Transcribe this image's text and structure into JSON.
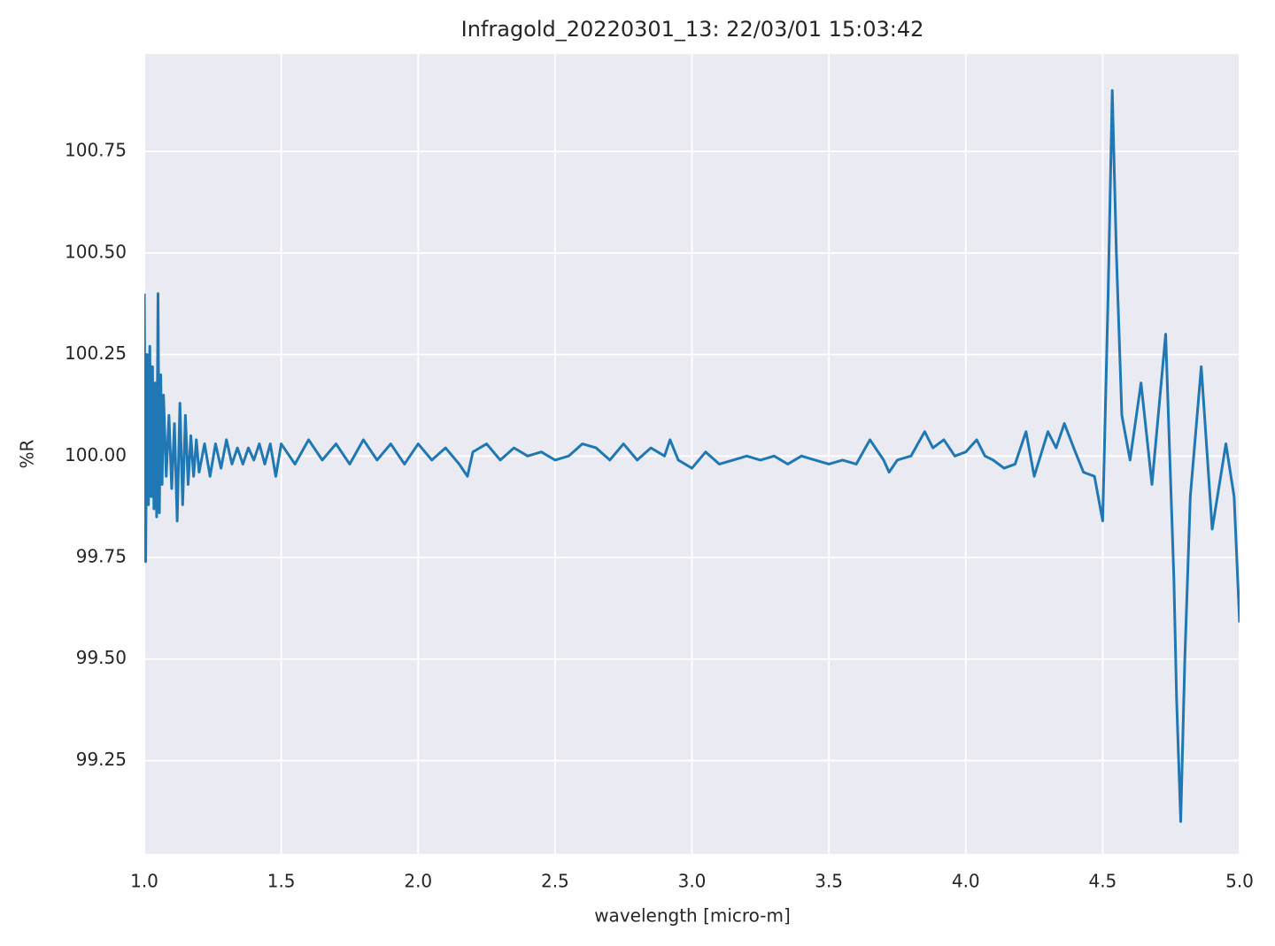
{
  "chart_data": {
    "type": "line",
    "title": "Infragold_20220301_13:  22/03/01 15:03:42",
    "xlabel": "wavelength [micro-m]",
    "ylabel": "%R",
    "color": "#1f77b4",
    "grid": true,
    "x": [
      1.0,
      1.005,
      1.01,
      1.015,
      1.02,
      1.025,
      1.03,
      1.035,
      1.04,
      1.045,
      1.05,
      1.055,
      1.06,
      1.065,
      1.07,
      1.08,
      1.09,
      1.1,
      1.11,
      1.12,
      1.13,
      1.14,
      1.15,
      1.16,
      1.17,
      1.18,
      1.19,
      1.2,
      1.22,
      1.24,
      1.26,
      1.28,
      1.3,
      1.32,
      1.34,
      1.36,
      1.38,
      1.4,
      1.42,
      1.44,
      1.46,
      1.48,
      1.5,
      1.55,
      1.6,
      1.65,
      1.7,
      1.75,
      1.8,
      1.85,
      1.9,
      1.95,
      2.0,
      2.05,
      2.1,
      2.15,
      2.18,
      2.2,
      2.25,
      2.3,
      2.35,
      2.4,
      2.45,
      2.5,
      2.55,
      2.6,
      2.65,
      2.7,
      2.75,
      2.8,
      2.85,
      2.9,
      2.92,
      2.95,
      3.0,
      3.05,
      3.1,
      3.15,
      3.2,
      3.25,
      3.3,
      3.35,
      3.4,
      3.45,
      3.5,
      3.55,
      3.6,
      3.65,
      3.7,
      3.72,
      3.75,
      3.8,
      3.85,
      3.88,
      3.92,
      3.96,
      4.0,
      4.04,
      4.07,
      4.1,
      4.14,
      4.18,
      4.22,
      4.25,
      4.3,
      4.33,
      4.36,
      4.4,
      4.43,
      4.47,
      4.5,
      4.52,
      4.535,
      4.55,
      4.57,
      4.6,
      4.64,
      4.68,
      4.73,
      4.76,
      4.77,
      4.785,
      4.8,
      4.82,
      4.86,
      4.9,
      4.95,
      4.98,
      5.0
    ],
    "values": [
      100.4,
      99.74,
      100.25,
      99.88,
      100.27,
      99.9,
      100.22,
      99.87,
      100.18,
      99.85,
      100.4,
      99.86,
      100.2,
      99.93,
      100.15,
      99.95,
      100.1,
      99.92,
      100.08,
      99.84,
      100.13,
      99.88,
      100.1,
      99.93,
      100.05,
      99.95,
      100.04,
      99.96,
      100.03,
      99.95,
      100.03,
      99.97,
      100.04,
      99.98,
      100.02,
      99.98,
      100.02,
      99.99,
      100.03,
      99.98,
      100.03,
      99.95,
      100.03,
      99.98,
      100.04,
      99.99,
      100.03,
      99.98,
      100.04,
      99.99,
      100.03,
      99.98,
      100.03,
      99.99,
      100.02,
      99.98,
      99.95,
      100.01,
      100.03,
      99.99,
      100.02,
      100.0,
      100.01,
      99.99,
      100.0,
      100.03,
      100.02,
      99.99,
      100.03,
      99.99,
      100.02,
      100.0,
      100.04,
      99.99,
      99.97,
      100.01,
      99.98,
      99.99,
      100.0,
      99.99,
      100.0,
      99.98,
      100.0,
      99.99,
      99.98,
      99.99,
      99.98,
      100.04,
      99.99,
      99.96,
      99.99,
      100.0,
      100.06,
      100.02,
      100.04,
      100.0,
      100.01,
      100.04,
      100.0,
      99.99,
      99.97,
      99.98,
      100.06,
      99.95,
      100.06,
      100.02,
      100.08,
      100.01,
      99.96,
      99.95,
      99.84,
      100.4,
      100.9,
      100.5,
      100.1,
      99.99,
      100.18,
      99.93,
      100.3,
      99.7,
      99.4,
      99.1,
      99.5,
      99.9,
      100.22,
      99.82,
      100.03,
      99.9,
      99.59
    ],
    "xlim": [
      1.0,
      5.0
    ],
    "xticks": [
      {
        "value": 1.0,
        "label": "1.0"
      },
      1.5,
      {
        "value": 2.0,
        "label": "2.0"
      },
      2.5,
      {
        "value": 3.0,
        "label": "3.0"
      },
      3.5,
      {
        "value": 4.0,
        "label": "4.0"
      },
      4.5,
      {
        "value": 5.0,
        "label": "5.0"
      }
    ],
    "ylim": [
      99.02,
      100.99
    ],
    "yticks": [
      99.25,
      {
        "value": 99.5,
        "label": "99.50"
      },
      99.75,
      {
        "value": 100.0,
        "label": "100.00"
      },
      100.25,
      {
        "value": 100.5,
        "label": "100.50"
      },
      100.75
    ]
  }
}
